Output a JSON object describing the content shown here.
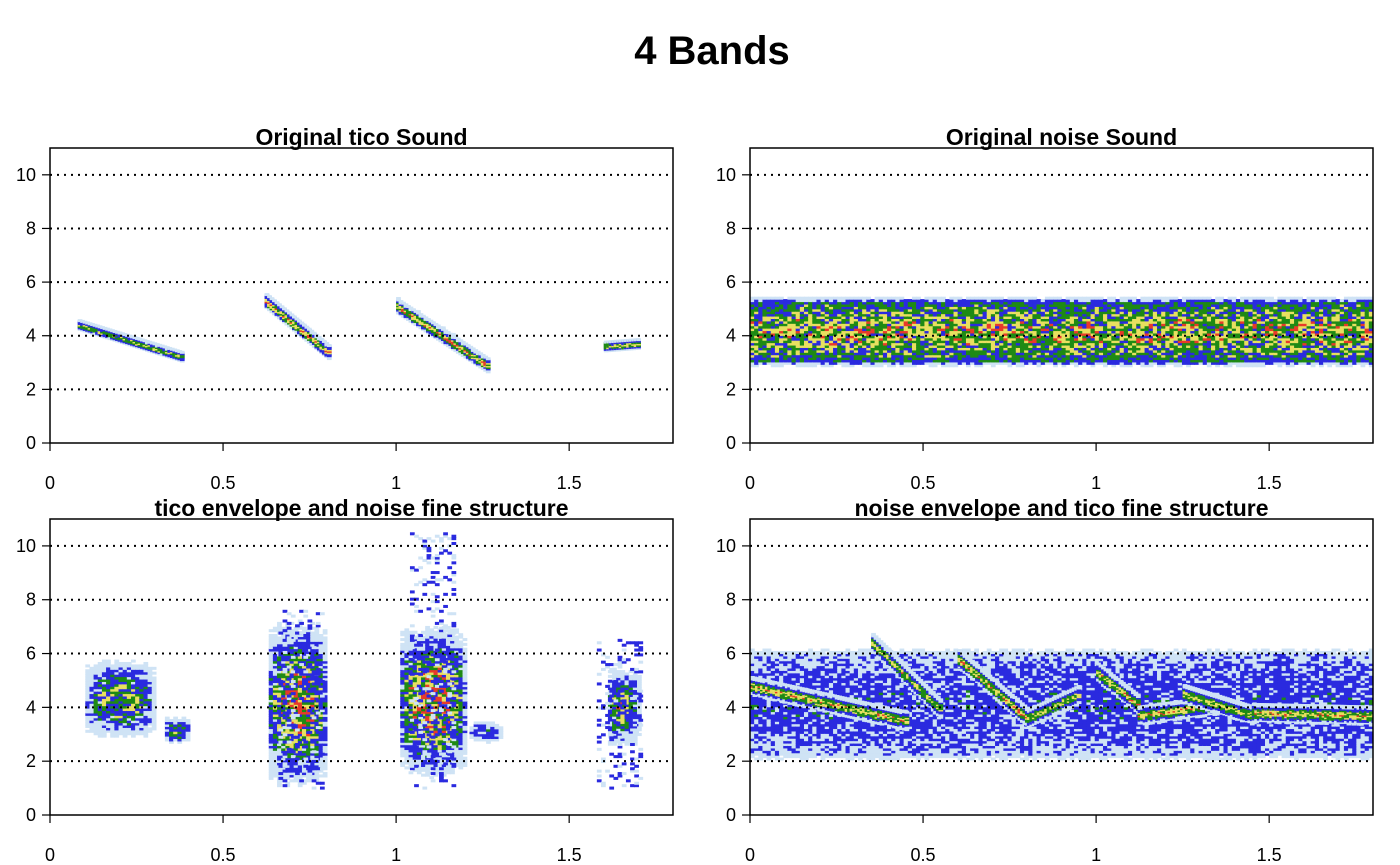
{
  "figure": {
    "title": "4 Bands"
  },
  "colors": {
    "low": "#cfe3f5",
    "mid_low": "#2a2adf",
    "mid": "#1e8a14",
    "mid_high": "#e8e060",
    "high": "#e83a2a",
    "grid": "#000000",
    "axis": "#000000"
  },
  "chart_data": [
    {
      "type": "heatmap",
      "title": "Original tico Sound",
      "xlabel": "",
      "ylabel": "",
      "xlim": [
        0,
        1.8
      ],
      "ylim": [
        0,
        11
      ],
      "x_ticks": [
        "0",
        "0.5",
        "1",
        "1.5"
      ],
      "y_ticks": [
        "0",
        "2",
        "4",
        "6",
        "8",
        "10"
      ],
      "y_grid": [
        2,
        4,
        6,
        8,
        10
      ],
      "grid": "horizontal dotted",
      "blobs": [
        {
          "t0": 0.08,
          "f0": 4.4,
          "t1": 0.38,
          "f1": 3.2,
          "w": 0.15,
          "intensity": 0.7
        },
        {
          "t0": 0.62,
          "f0": 5.3,
          "t1": 0.8,
          "f1": 3.4,
          "w": 0.2,
          "intensity": 0.85
        },
        {
          "t0": 1.0,
          "f0": 5.1,
          "t1": 1.26,
          "f1": 2.9,
          "w": 0.2,
          "intensity": 0.85
        },
        {
          "t0": 1.6,
          "f0": 3.6,
          "t1": 1.7,
          "f1": 3.7,
          "w": 0.15,
          "intensity": 0.75
        }
      ]
    },
    {
      "type": "heatmap",
      "title": "Original noise Sound",
      "xlabel": "",
      "ylabel": "",
      "xlim": [
        0,
        1.8
      ],
      "ylim": [
        0,
        11
      ],
      "x_ticks": [
        "0",
        "0.5",
        "1",
        "1.5"
      ],
      "y_ticks": [
        "0",
        "2",
        "4",
        "6",
        "8",
        "10"
      ],
      "y_grid": [
        2,
        4,
        6,
        8,
        10
      ],
      "grid": "horizontal dotted",
      "band": {
        "t0": 0,
        "t1": 1.8,
        "f0": 3.0,
        "f1": 5.3,
        "intensity": 0.8
      }
    },
    {
      "type": "heatmap",
      "title": "tico envelope and noise fine structure",
      "xlabel": "",
      "ylabel": "",
      "xlim": [
        0,
        1.8
      ],
      "ylim": [
        0,
        11
      ],
      "x_ticks": [
        "0",
        "0.5",
        "1",
        "1.5"
      ],
      "y_ticks": [
        "0",
        "2",
        "4",
        "6",
        "8",
        "10"
      ],
      "y_grid": [
        2,
        4,
        6,
        8,
        10
      ],
      "grid": "horizontal dotted",
      "segments": [
        {
          "t0": 0.09,
          "t1": 0.3,
          "f0": 3.3,
          "f1": 5.3,
          "intensity": 0.75
        },
        {
          "t0": 0.32,
          "t1": 0.4,
          "f0": 2.8,
          "f1": 3.5,
          "intensity": 0.6
        },
        {
          "t0": 0.62,
          "t1": 0.8,
          "f0": 2.0,
          "f1": 6.2,
          "intensity": 0.9
        },
        {
          "t0": 1.0,
          "t1": 1.2,
          "f0": 2.3,
          "f1": 6.1,
          "intensity": 0.95
        },
        {
          "t0": 1.2,
          "t1": 1.3,
          "f0": 2.8,
          "f1": 3.4,
          "intensity": 0.5
        },
        {
          "t0": 1.6,
          "t1": 1.7,
          "f0": 3.0,
          "f1": 5.0,
          "intensity": 0.75
        }
      ]
    },
    {
      "type": "heatmap",
      "title": "noise envelope and tico fine structure",
      "xlabel": "",
      "ylabel": "",
      "xlim": [
        0,
        1.8
      ],
      "ylim": [
        0,
        11
      ],
      "x_ticks": [
        "0",
        "0.5",
        "1",
        "1.5"
      ],
      "y_ticks": [
        "0",
        "2",
        "4",
        "6",
        "8",
        "10"
      ],
      "y_grid": [
        2,
        4,
        6,
        8,
        10
      ],
      "grid": "horizontal dotted",
      "band": {
        "t0": 0,
        "t1": 1.8,
        "f0": 2.2,
        "f1": 6.0,
        "intensity": 0.45
      },
      "traces": [
        {
          "t0": 0.0,
          "f0": 4.8,
          "t1": 0.45,
          "f1": 3.5,
          "intensity": 0.8
        },
        {
          "t0": 0.35,
          "f0": 6.4,
          "t1": 0.55,
          "f1": 3.9,
          "intensity": 0.75
        },
        {
          "t0": 0.6,
          "f0": 5.8,
          "t1": 0.8,
          "f1": 3.6,
          "intensity": 0.8
        },
        {
          "t0": 0.8,
          "f0": 3.6,
          "t1": 0.95,
          "f1": 4.5,
          "intensity": 0.75
        },
        {
          "t0": 1.0,
          "f0": 5.3,
          "t1": 1.12,
          "f1": 4.1,
          "intensity": 0.8
        },
        {
          "t0": 1.12,
          "f0": 3.7,
          "t1": 1.35,
          "f1": 4.1,
          "intensity": 0.8
        },
        {
          "t0": 1.25,
          "f0": 4.5,
          "t1": 1.45,
          "f1": 3.7,
          "intensity": 0.75
        },
        {
          "t0": 1.45,
          "f0": 3.8,
          "t1": 1.8,
          "f1": 3.7,
          "intensity": 0.8
        }
      ]
    }
  ]
}
